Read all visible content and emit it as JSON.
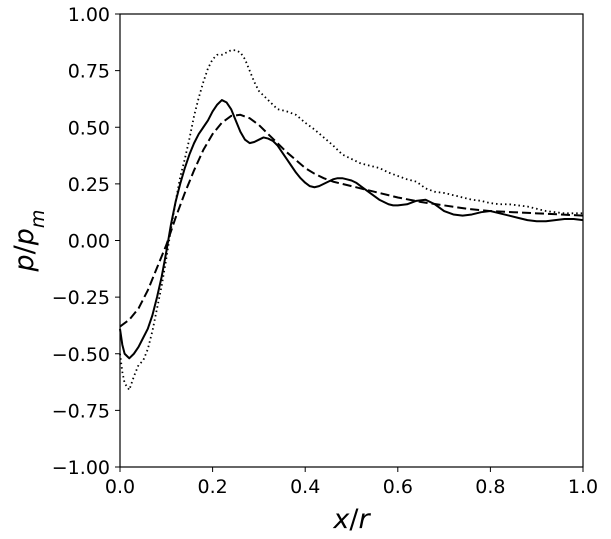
{
  "chart_data": {
    "type": "line",
    "title": "",
    "xlabel": "x/r",
    "ylabel": "p/p_m",
    "xlabel_parts": [
      {
        "text": "x",
        "italic": true
      },
      {
        "text": "/",
        "italic": false
      },
      {
        "text": "r",
        "italic": true
      }
    ],
    "ylabel_parts": [
      {
        "text": "p",
        "italic": true
      },
      {
        "text": "/",
        "italic": false
      },
      {
        "text": "p",
        "italic": true
      },
      {
        "text": "m",
        "italic": true,
        "sub": true
      }
    ],
    "xlim": [
      0.0,
      1.0
    ],
    "ylim": [
      -1.0,
      1.0
    ],
    "x_ticks": [
      0.0,
      0.2,
      0.4,
      0.6,
      0.8,
      1.0
    ],
    "x_tick_labels": [
      "0.0",
      "0.2",
      "0.4",
      "0.6",
      "0.8",
      "1.0"
    ],
    "y_ticks": [
      -1.0,
      -0.75,
      -0.5,
      -0.25,
      0.0,
      0.25,
      0.5,
      0.75,
      1.0
    ],
    "y_tick_labels": [
      "−1.00",
      "−0.75",
      "−0.50",
      "−0.25",
      "0.00",
      "0.25",
      "0.50",
      "0.75",
      "1.00"
    ],
    "grid": false,
    "legend": false,
    "series": [
      {
        "style": "solid",
        "color": "#000000",
        "x": [
          0.0,
          0.005,
          0.01,
          0.02,
          0.03,
          0.04,
          0.05,
          0.06,
          0.07,
          0.08,
          0.09,
          0.1,
          0.11,
          0.12,
          0.13,
          0.14,
          0.15,
          0.16,
          0.17,
          0.18,
          0.19,
          0.2,
          0.21,
          0.22,
          0.23,
          0.24,
          0.25,
          0.26,
          0.27,
          0.28,
          0.29,
          0.3,
          0.31,
          0.32,
          0.33,
          0.34,
          0.35,
          0.36,
          0.37,
          0.38,
          0.39,
          0.4,
          0.41,
          0.42,
          0.43,
          0.44,
          0.45,
          0.46,
          0.47,
          0.48,
          0.49,
          0.5,
          0.51,
          0.52,
          0.53,
          0.54,
          0.55,
          0.56,
          0.57,
          0.58,
          0.59,
          0.6,
          0.62,
          0.64,
          0.66,
          0.68,
          0.7,
          0.72,
          0.74,
          0.76,
          0.78,
          0.8,
          0.82,
          0.84,
          0.86,
          0.88,
          0.9,
          0.92,
          0.94,
          0.96,
          0.98,
          1.0
        ],
        "y": [
          -0.39,
          -0.46,
          -0.5,
          -0.52,
          -0.5,
          -0.47,
          -0.43,
          -0.39,
          -0.33,
          -0.25,
          -0.16,
          -0.05,
          0.07,
          0.17,
          0.25,
          0.32,
          0.38,
          0.43,
          0.47,
          0.5,
          0.53,
          0.57,
          0.6,
          0.62,
          0.61,
          0.58,
          0.53,
          0.48,
          0.445,
          0.43,
          0.435,
          0.445,
          0.455,
          0.45,
          0.44,
          0.42,
          0.39,
          0.36,
          0.33,
          0.3,
          0.275,
          0.255,
          0.24,
          0.235,
          0.24,
          0.25,
          0.26,
          0.27,
          0.275,
          0.275,
          0.27,
          0.265,
          0.255,
          0.24,
          0.225,
          0.21,
          0.195,
          0.18,
          0.17,
          0.16,
          0.155,
          0.155,
          0.16,
          0.175,
          0.18,
          0.16,
          0.13,
          0.115,
          0.11,
          0.115,
          0.125,
          0.13,
          0.12,
          0.11,
          0.1,
          0.09,
          0.085,
          0.085,
          0.09,
          0.095,
          0.095,
          0.09
        ]
      },
      {
        "style": "dashed",
        "color": "#000000",
        "x": [
          0.0,
          0.02,
          0.04,
          0.06,
          0.08,
          0.1,
          0.12,
          0.14,
          0.16,
          0.18,
          0.2,
          0.22,
          0.24,
          0.26,
          0.28,
          0.3,
          0.32,
          0.34,
          0.36,
          0.38,
          0.4,
          0.42,
          0.44,
          0.46,
          0.48,
          0.5,
          0.52,
          0.55,
          0.6,
          0.65,
          0.7,
          0.75,
          0.8,
          0.85,
          0.9,
          0.95,
          1.0
        ],
        "y": [
          -0.38,
          -0.35,
          -0.3,
          -0.22,
          -0.12,
          -0.02,
          0.1,
          0.21,
          0.31,
          0.4,
          0.47,
          0.52,
          0.55,
          0.555,
          0.54,
          0.51,
          0.47,
          0.43,
          0.39,
          0.355,
          0.32,
          0.295,
          0.275,
          0.26,
          0.25,
          0.24,
          0.23,
          0.215,
          0.19,
          0.17,
          0.155,
          0.14,
          0.13,
          0.125,
          0.12,
          0.115,
          0.11
        ]
      },
      {
        "style": "dotted",
        "color": "#000000",
        "x": [
          0.0,
          0.005,
          0.01,
          0.02,
          0.03,
          0.04,
          0.05,
          0.06,
          0.07,
          0.08,
          0.09,
          0.1,
          0.11,
          0.12,
          0.13,
          0.14,
          0.15,
          0.16,
          0.17,
          0.18,
          0.19,
          0.2,
          0.21,
          0.22,
          0.23,
          0.24,
          0.25,
          0.26,
          0.27,
          0.28,
          0.29,
          0.3,
          0.31,
          0.32,
          0.33,
          0.34,
          0.35,
          0.36,
          0.38,
          0.4,
          0.42,
          0.44,
          0.46,
          0.48,
          0.5,
          0.52,
          0.54,
          0.56,
          0.58,
          0.6,
          0.62,
          0.64,
          0.66,
          0.68,
          0.7,
          0.72,
          0.74,
          0.76,
          0.78,
          0.8,
          0.82,
          0.84,
          0.86,
          0.88,
          0.9,
          0.92,
          0.94,
          0.96,
          0.98,
          1.0
        ],
        "y": [
          -0.5,
          -0.58,
          -0.63,
          -0.66,
          -0.6,
          -0.55,
          -0.53,
          -0.48,
          -0.4,
          -0.3,
          -0.2,
          -0.08,
          0.05,
          0.17,
          0.28,
          0.36,
          0.45,
          0.55,
          0.63,
          0.7,
          0.76,
          0.8,
          0.82,
          0.82,
          0.83,
          0.84,
          0.84,
          0.83,
          0.8,
          0.75,
          0.7,
          0.66,
          0.64,
          0.62,
          0.6,
          0.58,
          0.575,
          0.57,
          0.555,
          0.52,
          0.49,
          0.455,
          0.42,
          0.38,
          0.36,
          0.34,
          0.33,
          0.32,
          0.3,
          0.285,
          0.27,
          0.26,
          0.23,
          0.215,
          0.21,
          0.2,
          0.19,
          0.18,
          0.175,
          0.165,
          0.16,
          0.16,
          0.155,
          0.15,
          0.14,
          0.13,
          0.125,
          0.12,
          0.12,
          0.12
        ]
      }
    ]
  }
}
